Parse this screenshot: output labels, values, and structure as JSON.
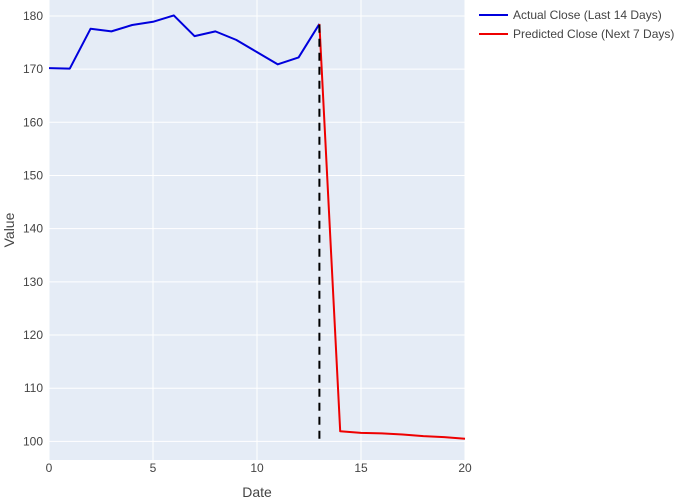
{
  "chart_data": {
    "type": "line",
    "title": "",
    "xlabel": "Date",
    "ylabel": "Value",
    "xlim": [
      0,
      20
    ],
    "ylim": [
      96.5,
      183
    ],
    "x_ticks": [
      0,
      5,
      10,
      15,
      20
    ],
    "y_ticks": [
      100,
      110,
      120,
      130,
      140,
      150,
      160,
      170,
      180
    ],
    "grid": true,
    "legend_position": "top-right",
    "series": [
      {
        "name": "Actual Close (Last 14 Days)",
        "color": "#0000dd",
        "x": [
          0,
          1,
          2,
          3,
          4,
          5,
          6,
          7,
          8,
          9,
          10,
          11,
          12,
          13
        ],
        "y": [
          170.2,
          170.1,
          177.6,
          177.1,
          178.3,
          178.9,
          180.1,
          176.2,
          177.1,
          175.5,
          173.2,
          170.9,
          172.2,
          178.5
        ]
      },
      {
        "name": "Predicted Close (Next 7 Days)",
        "color": "#ee0000",
        "x": [
          13,
          14,
          15,
          16,
          17,
          18,
          19,
          20
        ],
        "y": [
          178.5,
          101.9,
          101.6,
          101.5,
          101.3,
          101.0,
          100.8,
          100.5
        ]
      }
    ],
    "annotations": [
      {
        "type": "vertical-dashed-line",
        "x": 13,
        "y_from": 100.5,
        "y_to": 178.5,
        "color": "#000000"
      }
    ]
  }
}
